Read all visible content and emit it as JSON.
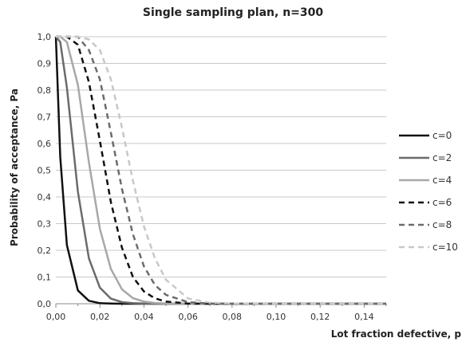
{
  "chart_data": {
    "type": "line",
    "title": "Single sampling plan, n=300",
    "xlabel": "Lot fraction defective, p",
    "ylabel": "Probability of acceptance, Pa",
    "n": 300,
    "xlim": [
      0,
      0.15
    ],
    "ylim": [
      0,
      1.0
    ],
    "x_ticks": [
      "0,00",
      "0,02",
      "0,04",
      "0,06",
      "0,08",
      "0,10",
      "0,12",
      "0,14"
    ],
    "y_ticks": [
      "0,0",
      "0,1",
      "0,2",
      "0,3",
      "0,4",
      "0,5",
      "0,6",
      "0,7",
      "0,8",
      "0,9",
      "1,0"
    ],
    "grid": "horizontal",
    "legend": "right",
    "x": [
      0,
      0.002,
      0.005,
      0.01,
      0.015,
      0.02,
      0.025,
      0.03,
      0.035,
      0.04,
      0.045,
      0.05,
      0.06,
      0.07,
      0.08,
      0.1,
      0.12,
      0.15
    ],
    "series": [
      {
        "name": "c=0",
        "color": "#111111",
        "dash": "solid",
        "values": [
          1.0,
          0.55,
          0.22,
          0.05,
          0.011,
          0.002,
          0.001,
          0,
          0,
          0,
          0,
          0,
          0,
          0,
          0,
          0,
          0,
          0
        ]
      },
      {
        "name": "c=2",
        "color": "#6b6b6b",
        "dash": "solid",
        "values": [
          1.0,
          0.98,
          0.81,
          0.42,
          0.17,
          0.06,
          0.019,
          0.006,
          0.002,
          0.001,
          0,
          0,
          0,
          0,
          0,
          0,
          0,
          0
        ]
      },
      {
        "name": "c=4",
        "color": "#a8a8a8",
        "dash": "solid",
        "values": [
          1.0,
          1.0,
          0.98,
          0.82,
          0.53,
          0.28,
          0.13,
          0.054,
          0.021,
          0.008,
          0.003,
          0.001,
          0,
          0,
          0,
          0,
          0,
          0
        ]
      },
      {
        "name": "c=6",
        "color": "#111111",
        "dash": "dashed",
        "values": [
          1.0,
          1.0,
          1.0,
          0.97,
          0.83,
          0.61,
          0.38,
          0.21,
          0.1,
          0.046,
          0.02,
          0.008,
          0.001,
          0,
          0,
          0,
          0,
          0
        ]
      },
      {
        "name": "c=8",
        "color": "#6b6b6b",
        "dash": "dashed",
        "values": [
          1.0,
          1.0,
          1.0,
          1.0,
          0.95,
          0.84,
          0.64,
          0.43,
          0.26,
          0.14,
          0.07,
          0.033,
          0.006,
          0.001,
          0,
          0,
          0,
          0
        ]
      },
      {
        "name": "c=10",
        "color": "#c8c8c8",
        "dash": "dashed",
        "values": [
          1.0,
          1.0,
          1.0,
          1.0,
          0.99,
          0.95,
          0.84,
          0.66,
          0.46,
          0.29,
          0.17,
          0.09,
          0.02,
          0.004,
          0.001,
          0,
          0,
          0
        ]
      }
    ]
  }
}
